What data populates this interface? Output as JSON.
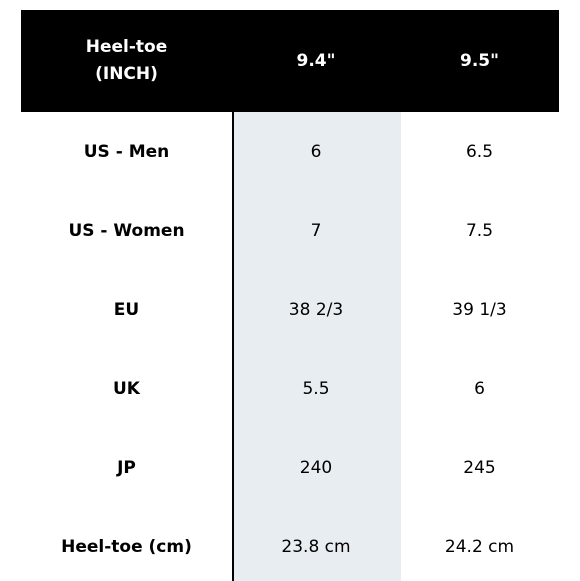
{
  "table": {
    "header": {
      "label": "Heel-toe\n(INCH)",
      "size_1": "9.4\"",
      "size_2": "9.5\""
    },
    "rows": [
      {
        "label": "US - Men",
        "values": [
          "6",
          "6.5"
        ]
      },
      {
        "label": "US - Women",
        "values": [
          "7",
          "7.5"
        ]
      },
      {
        "label": "EU",
        "values": [
          "38 2/3",
          "39 1/3"
        ]
      },
      {
        "label": "UK",
        "values": [
          "5.5",
          "6"
        ]
      },
      {
        "label": "JP",
        "values": [
          "240",
          "245"
        ]
      },
      {
        "label": "Heel-toe (cm)",
        "values": [
          "23.8 cm",
          "24.2 cm"
        ]
      }
    ],
    "colors": {
      "header_background": "#000000",
      "header_text": "#ffffff",
      "highlight_column": "#e8edf1",
      "body_text": "#000000"
    }
  }
}
